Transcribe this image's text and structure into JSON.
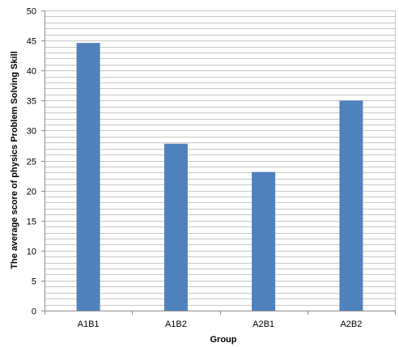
{
  "chart_data": {
    "type": "bar",
    "title": "",
    "xlabel": "Group",
    "ylabel": "The average score of physics Problem Solving Skill",
    "categories": [
      "A1B1",
      "A1B2",
      "A2B1",
      "A2B2"
    ],
    "values": [
      44.6,
      27.8,
      23.1,
      35.0
    ],
    "ylim": [
      0,
      50
    ],
    "yticks": [
      0,
      5,
      10,
      15,
      20,
      25,
      30,
      35,
      40,
      45,
      50
    ],
    "minor_grid_step": 1,
    "grid": true,
    "legend": "none",
    "colors": {
      "bar": "#4f81bd",
      "grid": "#c8c8c8",
      "axis": "#8c8c8c"
    }
  }
}
